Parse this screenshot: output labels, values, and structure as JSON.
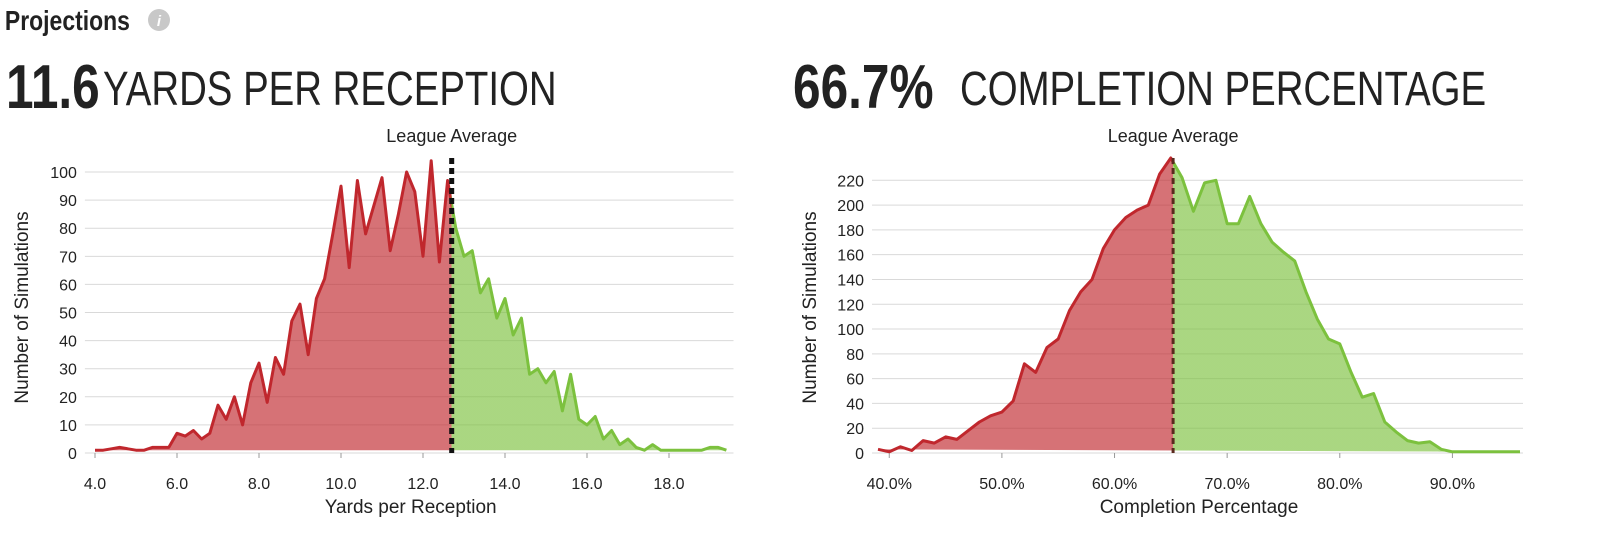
{
  "header": {
    "title": "Projections"
  },
  "chart_data": [
    {
      "type": "area",
      "headline_value": 11.6,
      "title": "YARDS PER RECEPTION",
      "x_label": "Yards per Reception",
      "y_label": "Number of Simulations",
      "reference": {
        "label": "League Average",
        "x": 12.7
      },
      "colors": {
        "below": "#c0272d",
        "above": "#7cc13e"
      },
      "grid": true,
      "xlim": [
        3.9,
        19.5
      ],
      "xticks": [
        {
          "value": 4,
          "label": "4.0"
        },
        {
          "value": 6,
          "label": "6.0"
        },
        {
          "value": 8,
          "label": "8.0"
        },
        {
          "value": 10,
          "label": "10.0"
        },
        {
          "value": 12,
          "label": "12.0"
        },
        {
          "value": 14,
          "label": "14.0"
        },
        {
          "value": 16,
          "label": "16.0"
        },
        {
          "value": 18,
          "label": "18.0"
        }
      ],
      "ylim": [
        0,
        105
      ],
      "yticks": [
        0,
        10,
        20,
        30,
        40,
        50,
        60,
        70,
        80,
        90,
        100
      ],
      "x": [
        4.0,
        4.2,
        4.4,
        4.6,
        4.8,
        5.0,
        5.2,
        5.4,
        5.6,
        5.8,
        6.0,
        6.2,
        6.4,
        6.6,
        6.8,
        7.0,
        7.2,
        7.4,
        7.6,
        7.8,
        8.0,
        8.2,
        8.4,
        8.6,
        8.8,
        9.0,
        9.2,
        9.4,
        9.6,
        9.8,
        10.0,
        10.2,
        10.4,
        10.6,
        10.8,
        11.0,
        11.2,
        11.4,
        11.6,
        11.8,
        12.0,
        12.2,
        12.4,
        12.6,
        12.8,
        13.0,
        13.2,
        13.4,
        13.6,
        13.8,
        14.0,
        14.2,
        14.4,
        14.6,
        14.8,
        15.0,
        15.2,
        15.4,
        15.6,
        15.8,
        16.0,
        16.2,
        16.4,
        16.6,
        16.8,
        17.0,
        17.2,
        17.4,
        17.6,
        17.8,
        18.0,
        18.2,
        18.4,
        18.6,
        18.8,
        19.0,
        19.2,
        19.4
      ],
      "values": [
        1,
        1,
        1.5,
        2,
        1.5,
        1,
        1,
        2,
        2,
        2,
        7,
        6,
        8,
        5,
        7,
        17,
        12,
        20,
        10,
        25,
        32,
        18,
        34,
        28,
        47,
        53,
        35,
        55,
        62,
        78,
        95,
        66,
        97,
        78,
        88,
        98,
        72,
        85,
        100,
        93,
        70,
        104,
        68,
        97,
        80,
        70,
        72,
        57,
        62,
        48,
        55,
        42,
        48,
        28,
        30,
        25,
        29,
        15,
        28,
        12,
        10,
        13,
        5,
        8,
        3,
        5,
        2,
        1,
        3,
        1,
        1,
        1,
        1,
        1,
        1,
        2,
        2,
        1
      ]
    },
    {
      "type": "area",
      "headline_value": {
        "value": 66.7,
        "label": "66.7%"
      },
      "title": "COMPLETION PERCENTAGE",
      "x_label": "Completion Percentage",
      "y_label": "Number of Simulations",
      "reference": {
        "label": "League Average",
        "x": 65.2
      },
      "colors": {
        "below": "#c0272d",
        "above": "#7cc13e"
      },
      "grid": true,
      "xlim": [
        39,
        96
      ],
      "xticks": [
        {
          "value": 40,
          "label": "40.0%"
        },
        {
          "value": 50,
          "label": "50.0%"
        },
        {
          "value": 60,
          "label": "60.0%"
        },
        {
          "value": 70,
          "label": "70.0%"
        },
        {
          "value": 80,
          "label": "80.0%"
        },
        {
          "value": 90,
          "label": "90.0%"
        }
      ],
      "ylim": [
        0,
        238
      ],
      "yticks": [
        0,
        20,
        40,
        60,
        80,
        100,
        120,
        140,
        160,
        180,
        200,
        220
      ],
      "x": [
        39,
        40,
        41,
        42,
        43,
        44,
        45,
        46,
        47,
        48,
        49,
        50,
        51,
        52,
        53,
        54,
        55,
        56,
        57,
        58,
        59,
        60,
        61,
        62,
        63,
        64,
        65,
        66,
        67,
        68,
        69,
        70,
        71,
        72,
        73,
        74,
        75,
        76,
        77,
        78,
        79,
        80,
        81,
        82,
        83,
        84,
        85,
        86,
        87,
        88,
        89,
        90,
        91,
        92,
        93,
        94,
        95,
        96
      ],
      "values": [
        3,
        1,
        5,
        2,
        10,
        8,
        13,
        11,
        18,
        25,
        30,
        33,
        42,
        72,
        65,
        85,
        92,
        115,
        130,
        140,
        165,
        180,
        190,
        196,
        200,
        225,
        238,
        222,
        195,
        218,
        220,
        185,
        185,
        207,
        185,
        170,
        162,
        155,
        130,
        108,
        92,
        88,
        65,
        45,
        48,
        25,
        17,
        10,
        8,
        9,
        3,
        1,
        1,
        1,
        1,
        1,
        1,
        1
      ]
    }
  ]
}
